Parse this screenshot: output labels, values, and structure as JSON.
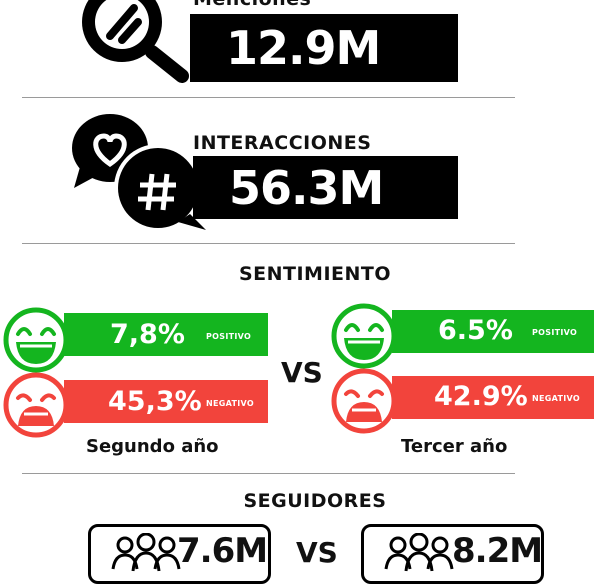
{
  "mentions": {
    "label": "Menciones",
    "value": "12.9M"
  },
  "interactions": {
    "label": "INTERACCIONES",
    "value": "56.3M"
  },
  "sentiment": {
    "title": "SENTIMIENTO",
    "vs": "VS",
    "year2": {
      "name": "Segundo año",
      "positive": "7,8%",
      "negative": "45,3%"
    },
    "year3": {
      "name": "Tercer año",
      "positive": "6.5%",
      "negative": "42.9%"
    },
    "positive_tag": "POSITIVO",
    "negative_tag": "NEGATIVO",
    "colors": {
      "positive": "#14b51f",
      "negative": "#f2443c"
    }
  },
  "followers": {
    "title": "SEGUIDORES",
    "vs": "VS",
    "left_value": "7.6M",
    "right_value": "8.2M"
  },
  "icons": [
    "magnifier-icon",
    "chat-heart-icon",
    "hashtag-icon",
    "happy-face-icon",
    "sad-face-icon",
    "people-icon"
  ]
}
